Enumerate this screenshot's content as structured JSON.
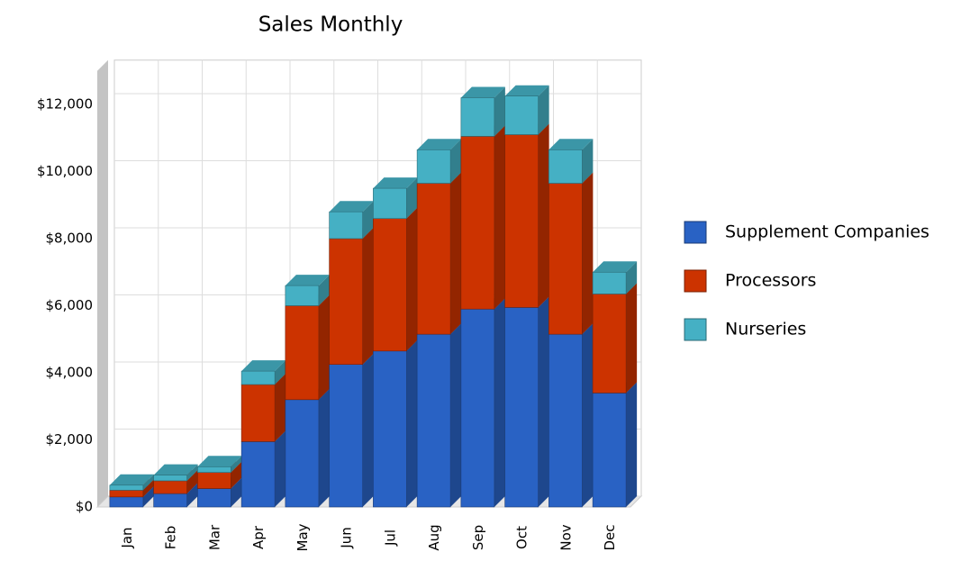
{
  "chart_data": {
    "type": "bar",
    "stacked": true,
    "title": "Sales Monthly",
    "categories": [
      "Jan",
      "Feb",
      "Mar",
      "Apr",
      "May",
      "Jun",
      "Jul",
      "Aug",
      "Sep",
      "Oct",
      "Nov",
      "Dec"
    ],
    "series": [
      {
        "name": "Supplement Companies",
        "color": "#2962c4",
        "values": [
          300,
          400,
          550,
          1950,
          3200,
          4250,
          4650,
          5150,
          5900,
          5950,
          5150,
          3400
        ]
      },
      {
        "name": "Processors",
        "color": "#cc3300",
        "values": [
          200,
          380,
          480,
          1700,
          2800,
          3750,
          3950,
          4500,
          5150,
          5150,
          4500,
          2950
        ]
      },
      {
        "name": "Nurseries",
        "color": "#45b0c4",
        "values": [
          150,
          170,
          170,
          400,
          600,
          800,
          900,
          1000,
          1150,
          1150,
          1000,
          650
        ]
      }
    ],
    "ylim": [
      0,
      13000
    ],
    "yticks": [
      {
        "value": 0,
        "label": "$0"
      },
      {
        "value": 2000,
        "label": "$2,000"
      },
      {
        "value": 4000,
        "label": "$4,000"
      },
      {
        "value": 6000,
        "label": "$6,000"
      },
      {
        "value": 8000,
        "label": "$8,000"
      },
      {
        "value": 10000,
        "label": "$10,000"
      },
      {
        "value": 12000,
        "label": "$12,000"
      }
    ],
    "grid": true,
    "legend": "right"
  }
}
